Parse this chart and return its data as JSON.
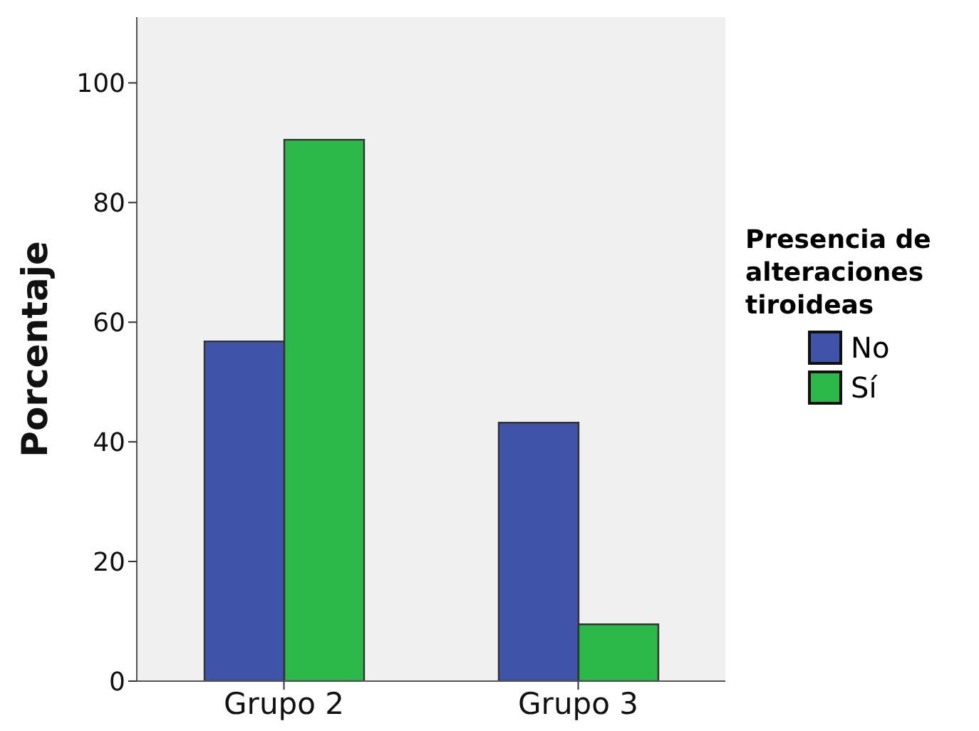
{
  "chart_data": {
    "type": "bar",
    "ylabel": "Porcentaje",
    "legend_title": "Presencia de alteraciones tiroideas",
    "categories": [
      "Grupo 2",
      "Grupo 3"
    ],
    "series": [
      {
        "name": "No",
        "color": "#3f54a8",
        "values": [
          56.8,
          43.2
        ]
      },
      {
        "name": "Sí",
        "color": "#2db84a",
        "values": [
          90.5,
          9.5
        ]
      }
    ],
    "ylim": [
      0,
      111
    ],
    "yticks": [
      0,
      20,
      40,
      60,
      80,
      100
    ],
    "legend": "right"
  }
}
